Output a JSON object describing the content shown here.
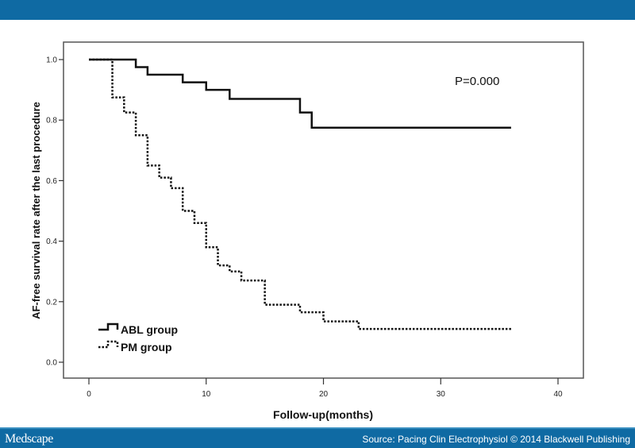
{
  "header": {
    "color": "#0f6aa3"
  },
  "footer": {
    "logo": "Medscape",
    "source": "Source: Pacing Clin Electrophysiol © 2014 Blackwell Publishing"
  },
  "chart_data": {
    "type": "line",
    "step": true,
    "title": "",
    "xlabel": "Follow-up(months)",
    "ylabel": "AF-free survival rate after the last procedure",
    "xlim": [
      0,
      40
    ],
    "ylim": [
      0,
      1.0
    ],
    "xticks": [
      "0",
      "10",
      "20",
      "30",
      "40"
    ],
    "yticks": [
      "0.0",
      "0.2",
      "0.4",
      "0.6",
      "0.8",
      "1.0"
    ],
    "annotation": "P=0.000",
    "grid": false,
    "legend_position": "bottom-left",
    "series": [
      {
        "name": "ABL group",
        "style": "solid",
        "x": [
          0,
          4,
          5,
          8,
          10,
          12,
          18,
          19,
          36
        ],
        "y": [
          1.0,
          0.975,
          0.95,
          0.925,
          0.9,
          0.87,
          0.825,
          0.775,
          0.775
        ]
      },
      {
        "name": "PM group",
        "style": "dotted",
        "x": [
          0,
          2,
          3,
          4,
          5,
          6,
          7,
          8,
          9,
          10,
          11,
          12,
          13,
          15,
          18,
          20,
          23,
          36
        ],
        "y": [
          1.0,
          0.875,
          0.825,
          0.75,
          0.65,
          0.61,
          0.575,
          0.5,
          0.46,
          0.38,
          0.32,
          0.3,
          0.27,
          0.19,
          0.165,
          0.135,
          0.11,
          0.11
        ]
      }
    ]
  }
}
